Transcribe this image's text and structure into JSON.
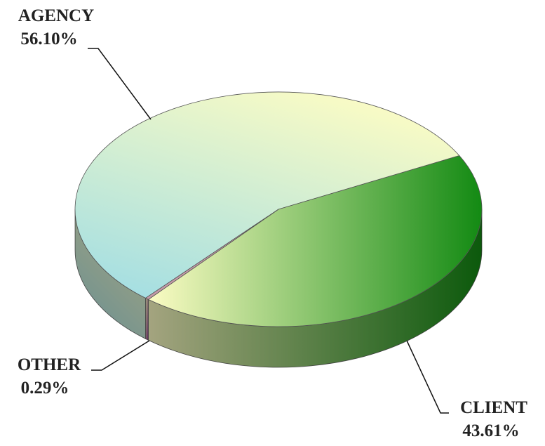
{
  "chart_data": {
    "type": "pie3d",
    "categories": [
      "AGENCY",
      "CLIENT",
      "OTHER"
    ],
    "values": [
      56.1,
      43.61,
      0.29
    ],
    "value_labels": [
      "56.10%",
      "43.61%",
      "0.29%"
    ],
    "colors": [
      "#a6dfe2",
      "#138a13",
      "#8b3a8b"
    ]
  }
}
